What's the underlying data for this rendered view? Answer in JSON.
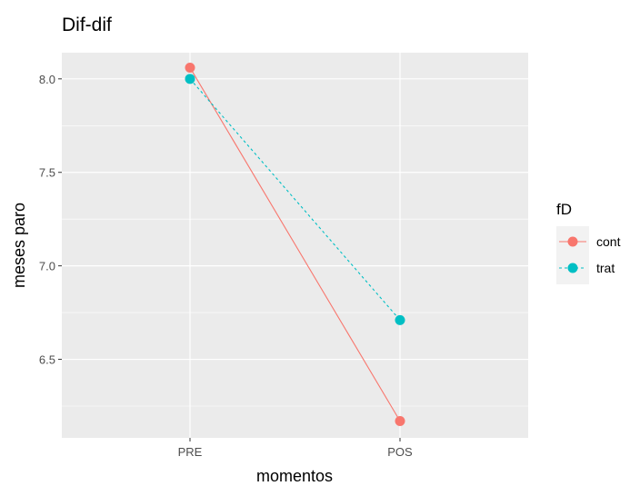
{
  "chart_data": {
    "type": "line",
    "title": "Dif-dif",
    "xlabel": "momentos",
    "ylabel": "meses paro",
    "categories": [
      "PRE",
      "POS"
    ],
    "y_ticks": [
      6.5,
      7.0,
      7.5,
      8.0
    ],
    "y_tick_labels": [
      "6.5",
      "7.0",
      "7.5",
      "8.0"
    ],
    "ylim": [
      6.08,
      8.14
    ],
    "grid": true,
    "legend": {
      "title": "fD",
      "placement": "right"
    },
    "series": [
      {
        "name": "cont",
        "values": [
          8.06,
          6.17
        ],
        "color": "#F8766D",
        "linetype": "solid"
      },
      {
        "name": "trat",
        "values": [
          8.0,
          6.71
        ],
        "color": "#00BFC4",
        "linetype": "dashed"
      }
    ]
  }
}
